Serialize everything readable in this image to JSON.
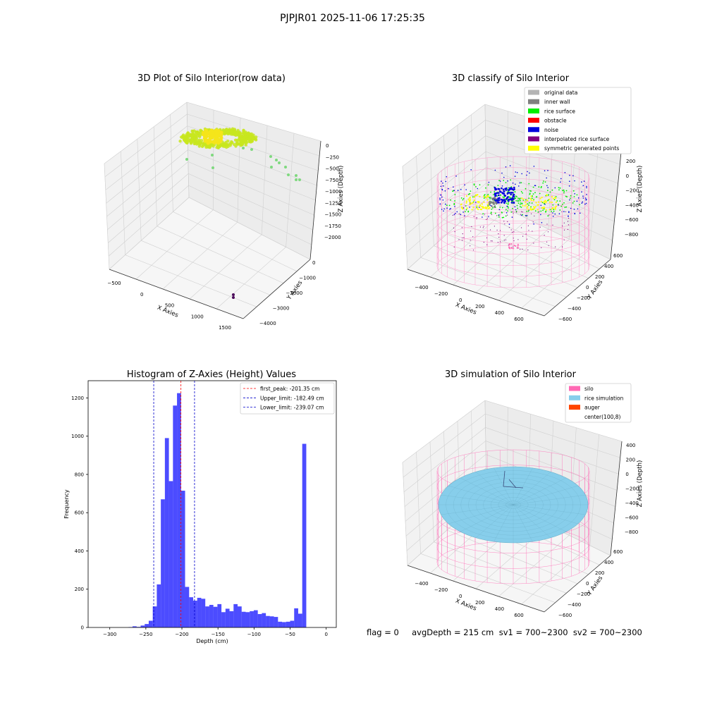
{
  "suptitle": "PJPJR01 2025-11-06 17:25:35",
  "chart_data": [
    {
      "type": "scatter",
      "title": "3D Plot of Silo Interior(row data)",
      "xlabel": "X Axies",
      "ylabel": "Y Axies",
      "zlabel": "Z Axies (Depth)",
      "x_ticks": [
        "−500",
        "0",
        "500",
        "1000",
        "1500"
      ],
      "y_ticks": [
        "0",
        "−1000",
        "−2000",
        "−3000",
        "−4000"
      ],
      "z_ticks": [
        "0",
        "−250",
        "−500",
        "−750",
        "−1000",
        "−1250",
        "−1500",
        "−1750",
        "−2000"
      ],
      "colors": {
        "main": "#c8e61e",
        "high": "#f5e51a",
        "outlier": "#7fd97f",
        "deep": "#4b0a5a"
      }
    },
    {
      "type": "scatter",
      "title": "3D classify of Silo Interior",
      "xlabel": "X Axies",
      "ylabel": "Y Axies",
      "zlabel": "Z Axies (Depth)",
      "x_ticks": [
        "−400",
        "−200",
        "0",
        "200",
        "400",
        "600"
      ],
      "y_ticks": [
        "600",
        "400",
        "200",
        "0",
        "−200",
        "−400",
        "−600"
      ],
      "z_ticks": [
        "200",
        "0",
        "−200",
        "−400",
        "−600",
        "−800"
      ],
      "z_extra_tick": "0",
      "legend": [
        {
          "label": "original data",
          "color": "#b4b4b4"
        },
        {
          "label": "inner wall",
          "color": "#808080"
        },
        {
          "label": "rice surface",
          "color": "#00ee00"
        },
        {
          "label": "obstacle",
          "color": "#ff0000"
        },
        {
          "label": "noise",
          "color": "#0000dd"
        },
        {
          "label": "interpolated rice surface",
          "color": "#800080"
        },
        {
          "label": "symmetric generated points",
          "color": "#ffff00"
        }
      ],
      "legend_loc": "upper right"
    },
    {
      "type": "histogram",
      "title": "Histogram of Z-Axies (Height) Values",
      "xlabel": "Depth (cm)",
      "ylabel": "Frequency",
      "xlim": [
        -330,
        14
      ],
      "ylim": [
        0,
        1290
      ],
      "x_ticks": [
        -300,
        -250,
        -200,
        -150,
        -100,
        -50,
        0
      ],
      "y_ticks": [
        0,
        200,
        400,
        600,
        800,
        1000,
        1200
      ],
      "bin_width": 5.6,
      "bins": [
        [
          -330,
          0
        ],
        [
          -324.4,
          0
        ],
        [
          -318.8,
          0
        ],
        [
          -313.2,
          0
        ],
        [
          -307.6,
          0
        ],
        [
          -302,
          0
        ],
        [
          -296.4,
          0
        ],
        [
          -290.8,
          0
        ],
        [
          -285.2,
          0
        ],
        [
          -279.6,
          0
        ],
        [
          -274,
          2
        ],
        [
          -268.4,
          6
        ],
        [
          -262.8,
          3
        ],
        [
          -257.2,
          10
        ],
        [
          -251.6,
          18
        ],
        [
          -246,
          35
        ],
        [
          -240.4,
          110
        ],
        [
          -234.8,
          225
        ],
        [
          -229.2,
          670
        ],
        [
          -223.6,
          990
        ],
        [
          -218,
          765
        ],
        [
          -212.4,
          1160
        ],
        [
          -206.8,
          1225
        ],
        [
          -201.2,
          715
        ],
        [
          -195.6,
          212
        ],
        [
          -190,
          158
        ],
        [
          -184.4,
          140
        ],
        [
          -178.8,
          155
        ],
        [
          -173.2,
          150
        ],
        [
          -167.6,
          110
        ],
        [
          -162,
          118
        ],
        [
          -156.4,
          108
        ],
        [
          -150.8,
          122
        ],
        [
          -145.2,
          80
        ],
        [
          -139.6,
          98
        ],
        [
          -134,
          85
        ],
        [
          -128.4,
          122
        ],
        [
          -122.8,
          110
        ],
        [
          -117.2,
          82
        ],
        [
          -111.6,
          80
        ],
        [
          -106,
          85
        ],
        [
          -100.4,
          90
        ],
        [
          -94.8,
          70
        ],
        [
          -89.2,
          75
        ],
        [
          -83.6,
          60
        ],
        [
          -78,
          58
        ],
        [
          -72.4,
          55
        ],
        [
          -66.8,
          30
        ],
        [
          -61.2,
          28
        ],
        [
          -55.6,
          30
        ],
        [
          -50,
          35
        ],
        [
          -44.4,
          100
        ],
        [
          -38.8,
          72
        ],
        [
          -33.2,
          960
        ]
      ],
      "color": "#0000ff",
      "vlines": [
        {
          "x": -201.35,
          "label": "first_peak: -201.35 cm",
          "color": "#ff0000"
        },
        {
          "x": -182.49,
          "label": "Upper_limit: -182.49 cm",
          "color": "#0000cc"
        },
        {
          "x": -239.07,
          "label": "Lower_limit: -239.07 cm",
          "color": "#0000cc"
        }
      ],
      "legend_loc": "upper right"
    },
    {
      "type": "surface",
      "title": "3D simulation of Silo Interior",
      "xlabel": "X Axies",
      "ylabel": "Y Axies",
      "zlabel": "Z Axies (Depth)",
      "x_ticks": [
        "−400",
        "−200",
        "0",
        "200",
        "400",
        "600"
      ],
      "y_ticks": [
        "600",
        "400",
        "200",
        "0",
        "−200",
        "−400",
        "−600"
      ],
      "z_ticks": [
        "400",
        "200",
        "0",
        "−200",
        "−400",
        "−600",
        "−800"
      ],
      "legend": [
        {
          "label": "silo",
          "color": "#ff69b4"
        },
        {
          "label": "rice simulation",
          "color": "#87ceeb"
        },
        {
          "label": "auger",
          "color": "#ff4500"
        },
        {
          "label": "center(100,8)",
          "color": "#ffffff"
        }
      ],
      "legend_loc": "upper right"
    }
  ],
  "footer": "flag = 0     avgDepth = 215 cm  sv1 = 700~2300  sv2 = 700~2300"
}
